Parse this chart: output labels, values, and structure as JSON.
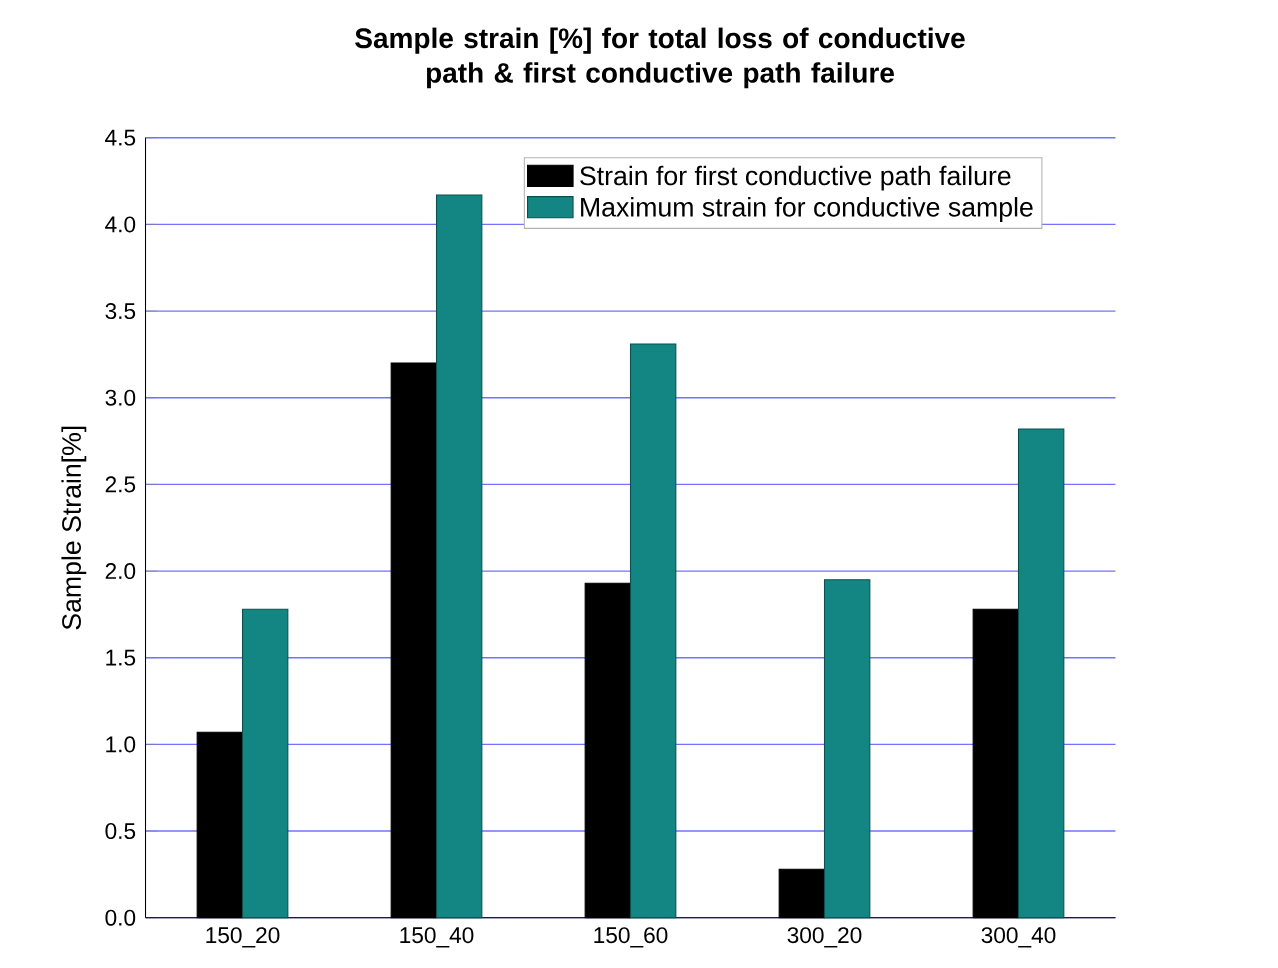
{
  "chart_data": {
    "type": "bar",
    "title": "Sample strain [%] for total loss of conductive path & first conductive path failure",
    "ylabel": "Sample Strain[%]",
    "categories": [
      "150_20",
      "150_40",
      "150_60",
      "300_20",
      "300_40"
    ],
    "series": [
      {
        "name": "Strain for first conductive path failure",
        "color": "#000000",
        "values": [
          1.07,
          3.2,
          1.93,
          0.28,
          1.78
        ]
      },
      {
        "name": "Maximum strain for conductive sample",
        "color": "#138582",
        "values": [
          1.78,
          4.17,
          3.31,
          1.95,
          2.82
        ]
      }
    ],
    "ylim": [
      0,
      4.5
    ],
    "yticks": [
      {
        "value": 0,
        "label": "0.0"
      },
      {
        "value": 0.5,
        "label": "0.5"
      },
      {
        "value": 1,
        "label": "1.0"
      },
      {
        "value": 1.5,
        "label": "1.5"
      },
      {
        "value": 2,
        "label": "2.0"
      },
      {
        "value": 2.5,
        "label": "2.5"
      },
      {
        "value": 3,
        "label": "3.0"
      },
      {
        "value": 3.5,
        "label": "3.5"
      },
      {
        "value": 4,
        "label": "4.0"
      },
      {
        "value": 4.5,
        "label": "4.5"
      }
    ],
    "grid": "y",
    "legend": "top right"
  }
}
